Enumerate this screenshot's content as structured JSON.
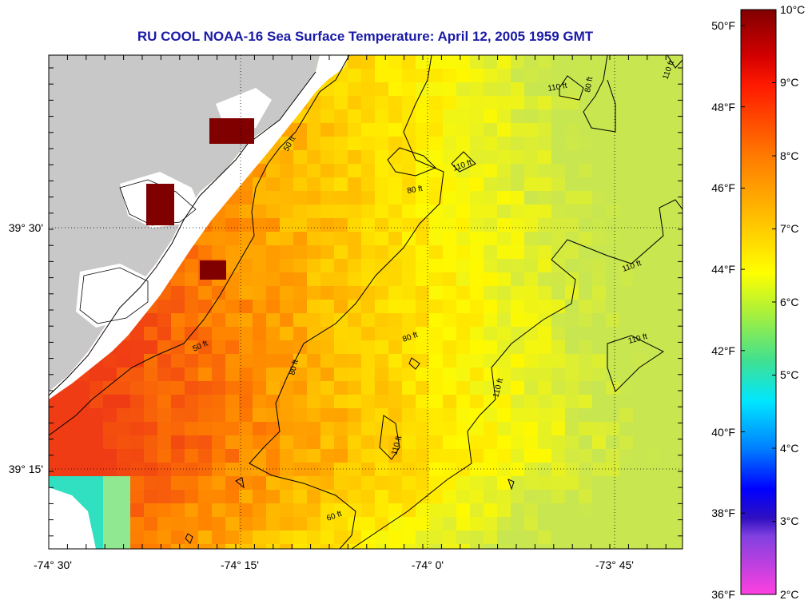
{
  "title": "RU COOL  NOAA-16  Sea Surface Temperature:  April 12, 2005 1959 GMT",
  "axes": {
    "x_ticks": [
      "-74° 30'",
      "-74° 15'",
      "-74° 0'",
      "-73° 45'"
    ],
    "y_ticks": [
      "39° 30'",
      "39° 15'"
    ]
  },
  "contours": {
    "labels": [
      "50 ft",
      "50 ft",
      "60 ft",
      "80 ft",
      "80 ft",
      "80 ft",
      "80 ft",
      "110 ft",
      "110 ft",
      "110 ft",
      "110 ft",
      "110 ft",
      "110 ft",
      "110 ft"
    ]
  },
  "colorbar": {
    "celsius": [
      "10°C",
      "9°C",
      "8°C",
      "7°C",
      "6°C",
      "5°C",
      "4°C",
      "3°C",
      "2°C"
    ],
    "fahrenheit": [
      "50°F",
      "48°F",
      "46°F",
      "44°F",
      "42°F",
      "40°F",
      "38°F",
      "36°F"
    ],
    "range_c": [
      2,
      10
    ],
    "range_f": [
      36,
      50
    ]
  },
  "colors": {
    "land": "#c8c8c8",
    "nodata": "#ffffff",
    "title": "#1a1aa8"
  }
}
